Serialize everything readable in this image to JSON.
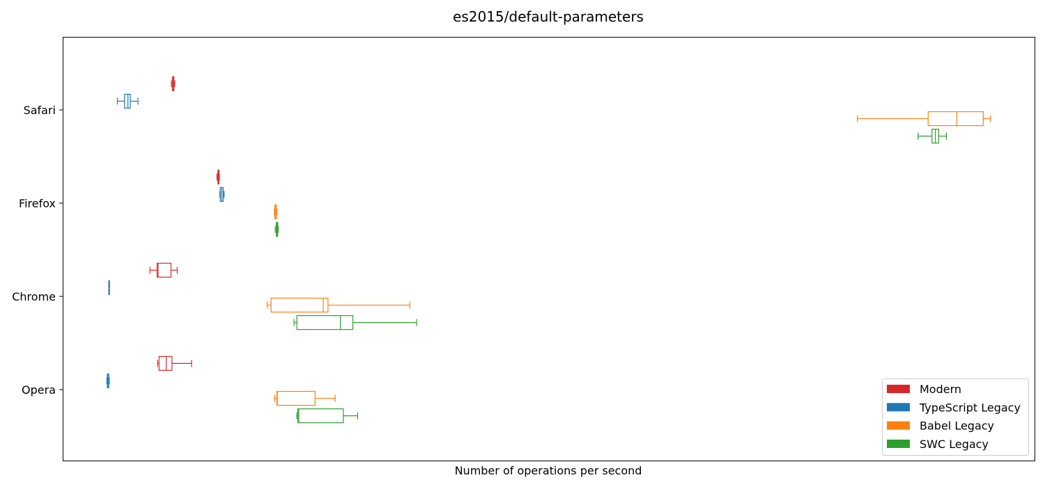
{
  "chart_data": {
    "type": "boxplot",
    "orientation": "horizontal",
    "title": "es2015/default-parameters",
    "xlabel": "Number of operations per second",
    "ylabel": "",
    "x_ticks_visible": false,
    "grid": false,
    "legend_position": "bottom-right",
    "categories": [
      "Safari",
      "Firefox",
      "Chrome",
      "Opera"
    ],
    "series": [
      {
        "name": "Modern",
        "color": "#d62728",
        "boxes": [
          {
            "category": "Safari",
            "whislo": 1.0,
            "q1": 1.02,
            "med": 1.03,
            "q3": 1.05,
            "whishi": 1.07
          },
          {
            "category": "Firefox",
            "whislo": 1.95,
            "q1": 1.97,
            "med": 1.98,
            "q3": 1.99,
            "whishi": 2.0
          },
          {
            "category": "Chrome",
            "whislo": 0.55,
            "q1": 0.7,
            "med": 0.72,
            "q3": 0.99,
            "whishi": 1.12
          },
          {
            "category": "Opera",
            "whislo": 0.71,
            "q1": 0.74,
            "med": 0.89,
            "q3": 1.01,
            "whishi": 1.42
          }
        ]
      },
      {
        "name": "TypeScript Legacy",
        "color": "#1f77b4",
        "boxes": [
          {
            "category": "Safari",
            "whislo": -0.13,
            "q1": 0.02,
            "med": 0.09,
            "q3": 0.14,
            "whishi": 0.3
          },
          {
            "category": "Firefox",
            "whislo": 2.01,
            "q1": 2.02,
            "med": 2.05,
            "q3": 2.08,
            "whishi": 2.1
          },
          {
            "category": "Chrome",
            "whislo": -0.31,
            "q1": -0.31,
            "med": -0.31,
            "q3": -0.3,
            "whishi": -0.3
          },
          {
            "category": "Opera",
            "whislo": -0.35,
            "q1": -0.34,
            "med": -0.33,
            "q3": -0.31,
            "whishi": -0.3
          }
        ]
      },
      {
        "name": "Babel Legacy",
        "color": "#ff7f0e",
        "boxes": [
          {
            "category": "Safari",
            "whislo": 15.33,
            "q1": 16.81,
            "med": 17.41,
            "q3": 17.96,
            "whishi": 18.11
          },
          {
            "category": "Firefox",
            "whislo": 3.15,
            "q1": 3.16,
            "med": 3.18,
            "q3": 3.19,
            "whishi": 3.2
          },
          {
            "category": "Chrome",
            "whislo": 3.0,
            "q1": 3.08,
            "med": 4.17,
            "q3": 4.27,
            "whishi": 5.98
          },
          {
            "category": "Opera",
            "whislo": 3.15,
            "q1": 3.2,
            "med": 3.21,
            "q3": 4.0,
            "whishi": 4.42
          }
        ]
      },
      {
        "name": "SWC Legacy",
        "color": "#2ca02c",
        "boxes": [
          {
            "category": "Safari",
            "whislo": 16.6,
            "q1": 16.89,
            "med": 16.96,
            "q3": 17.03,
            "whishi": 17.19
          },
          {
            "category": "Firefox",
            "whislo": 3.17,
            "q1": 3.19,
            "med": 3.2,
            "q3": 3.22,
            "whishi": 3.23
          },
          {
            "category": "Chrome",
            "whislo": 3.56,
            "q1": 3.62,
            "med": 4.53,
            "q3": 4.79,
            "whishi": 6.12
          },
          {
            "category": "Opera",
            "whislo": 3.62,
            "q1": 3.64,
            "med": 3.66,
            "q3": 4.59,
            "whishi": 4.89
          }
        ]
      }
    ]
  }
}
